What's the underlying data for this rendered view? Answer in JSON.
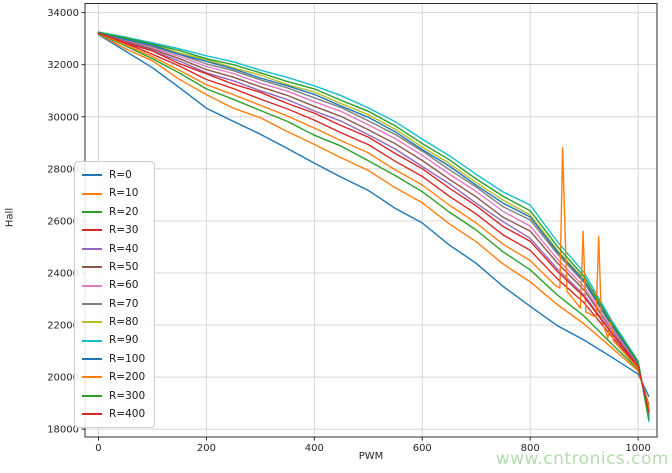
{
  "chart_data": {
    "type": "line",
    "title": "",
    "xlabel": "PWM",
    "ylabel": "Hall",
    "xlim": [
      -25,
      1035
    ],
    "ylim": [
      17700,
      34350
    ],
    "xticks": [
      0,
      200,
      400,
      600,
      800,
      1000
    ],
    "yticks": [
      18000,
      20000,
      22000,
      24000,
      26000,
      28000,
      30000,
      32000,
      34000
    ],
    "grid": true,
    "legend_position": "center left",
    "pwm": [
      0,
      50,
      100,
      150,
      200,
      250,
      300,
      350,
      400,
      450,
      500,
      550,
      600,
      650,
      700,
      750,
      800,
      850,
      900,
      950,
      1000,
      1020
    ],
    "series": [
      {
        "name": "R=0",
        "color": "#1f77b4",
        "y": [
          33150,
          32520,
          31880,
          31120,
          30330,
          29820,
          29330,
          28780,
          28220,
          27680,
          27170,
          26480,
          25920,
          25080,
          24370,
          23480,
          22720,
          21980,
          21420,
          20780,
          20120,
          19250
        ]
      },
      {
        "name": "R=10",
        "color": "#ff7f0e",
        "y": [
          33180,
          32610,
          32150,
          31440,
          30850,
          30330,
          29960,
          29430,
          28940,
          28420,
          27940,
          27270,
          26700,
          25890,
          25200,
          24340,
          23660,
          22790,
          22040,
          21150,
          20240,
          18960
        ]
      },
      {
        "name": "R=20",
        "color": "#2ca02c",
        "y": [
          33190,
          32720,
          32230,
          31680,
          31070,
          30670,
          30240,
          29820,
          29290,
          28870,
          28310,
          27740,
          27120,
          26340,
          25650,
          24810,
          24120,
          23160,
          22340,
          21300,
          20300,
          18890
        ]
      },
      {
        "name": "R=30",
        "color": "#d62728",
        "y": [
          33200,
          32820,
          32400,
          31950,
          31430,
          31080,
          30680,
          30300,
          29870,
          29380,
          28930,
          28290,
          27710,
          26950,
          26270,
          25460,
          24870,
          23780,
          22850,
          21590,
          20390,
          18720
        ]
      },
      {
        "name": "R=40",
        "color": "#9467bd",
        "y": [
          33220,
          32890,
          32530,
          32140,
          31690,
          31380,
          31000,
          30660,
          30220,
          29830,
          29310,
          28760,
          28090,
          27430,
          26680,
          25970,
          25330,
          24160,
          23150,
          21740,
          20450,
          18610
        ]
      },
      {
        "name": "R=50",
        "color": "#8c564b",
        "y": [
          33220,
          32920,
          32590,
          32230,
          31810,
          31520,
          31150,
          30820,
          30400,
          30010,
          29500,
          28960,
          28320,
          27600,
          26920,
          26140,
          25610,
          24390,
          23340,
          21850,
          20480,
          18550
        ]
      },
      {
        "name": "R=60",
        "color": "#e377c2",
        "y": [
          33230,
          32950,
          32640,
          32320,
          31930,
          31660,
          31290,
          30980,
          30580,
          30200,
          29690,
          29160,
          28520,
          27800,
          27130,
          26360,
          25800,
          24540,
          23460,
          21900,
          20510,
          18500
        ]
      },
      {
        "name": "R=70",
        "color": "#7f7f7f",
        "y": [
          33230,
          32980,
          32690,
          32390,
          32030,
          31770,
          31420,
          31110,
          30730,
          30350,
          29850,
          29320,
          28680,
          27970,
          27300,
          26540,
          26040,
          24740,
          23630,
          22010,
          20540,
          18450
        ]
      },
      {
        "name": "R=80",
        "color": "#bcbd22",
        "y": [
          33240,
          32990,
          32780,
          32450,
          32190,
          31880,
          31600,
          31240,
          30950,
          30500,
          30080,
          29520,
          28840,
          28210,
          27470,
          26790,
          26230,
          24890,
          23750,
          22060,
          20570,
          18400
        ]
      },
      {
        "name": "R=90",
        "color": "#17becf",
        "y": [
          33250,
          33060,
          32840,
          32610,
          32340,
          32110,
          31790,
          31510,
          31190,
          30810,
          30340,
          29810,
          29140,
          28510,
          27790,
          27110,
          26610,
          25210,
          24010,
          22210,
          20610,
          18300
        ]
      },
      {
        "name": "R=100",
        "color": "#1f77b4",
        "y": [
          33240,
          32970,
          32750,
          32400,
          32130,
          31840,
          31490,
          31190,
          30860,
          30410,
          29980,
          29420,
          28740,
          28110,
          27370,
          26680,
          26150,
          24830,
          23700,
          22040,
          20550,
          18420
        ]
      },
      {
        "name": "R=200",
        "color": "#ff7f0e",
        "x": [
          0,
          50,
          100,
          150,
          200,
          250,
          300,
          350,
          400,
          450,
          500,
          550,
          600,
          650,
          700,
          750,
          800,
          848,
          855,
          860,
          868,
          893,
          898,
          903,
          922,
          927,
          932,
          944,
          949,
          954,
          1000,
          1020
        ],
        "y": [
          33200,
          32760,
          32310,
          31790,
          31230,
          30850,
          30440,
          30030,
          29570,
          29080,
          28610,
          27960,
          27380,
          26610,
          25920,
          25100,
          24480,
          23500,
          23420,
          28800,
          23300,
          22650,
          25600,
          22500,
          22300,
          25400,
          22200,
          21500,
          22250,
          21400,
          20340,
          18800
        ]
      },
      {
        "name": "R=300",
        "color": "#2ca02c",
        "y": [
          33240,
          33030,
          32790,
          32540,
          32230,
          32000,
          31690,
          31350,
          31070,
          30630,
          30210,
          29650,
          28970,
          28350,
          27610,
          26940,
          26390,
          25030,
          23860,
          22120,
          20590,
          18360
        ]
      },
      {
        "name": "R=400",
        "color": "#d62728",
        "y": [
          33210,
          32840,
          32520,
          32040,
          31650,
          31250,
          30940,
          30510,
          30140,
          29660,
          29220,
          28590,
          28000,
          27260,
          26580,
          25780,
          25220,
          24070,
          23080,
          21710,
          20430,
          18640
        ]
      }
    ],
    "style": {
      "grid_color": "#d4d4d4",
      "spine_color": "#2b2b2b",
      "tick_color": "#2b2b2b",
      "line_width": 1.4
    }
  },
  "watermark": {
    "text": "www.cntronics.com",
    "color": "#b5dcb0"
  }
}
